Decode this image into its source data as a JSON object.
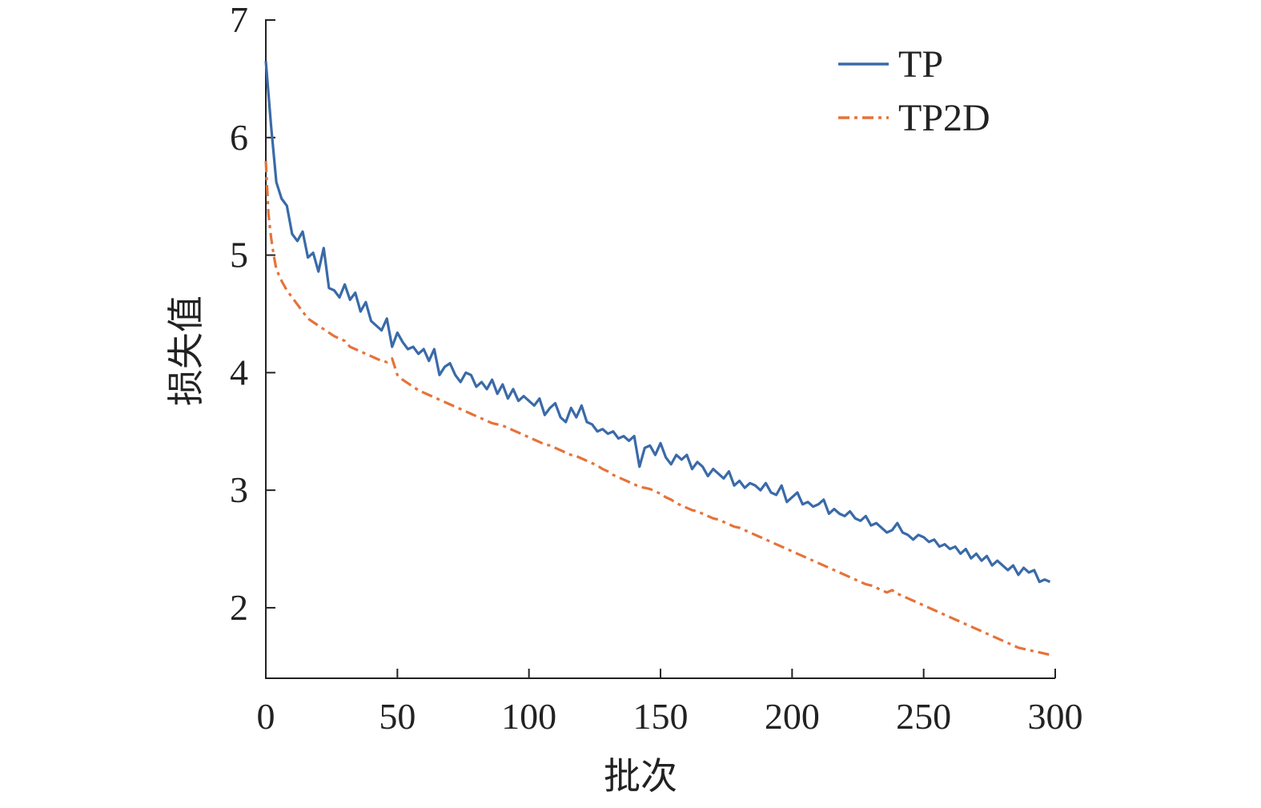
{
  "chart_data": {
    "type": "line",
    "title": "",
    "xlabel": "批次",
    "ylabel": "损失值",
    "xlim": [
      0,
      300
    ],
    "ylim": [
      1.4,
      7
    ],
    "xticks": [
      0,
      50,
      100,
      150,
      200,
      250,
      300
    ],
    "yticks": [
      2,
      3,
      4,
      5,
      6,
      7
    ],
    "xtick_labels": [
      "0",
      "50",
      "100",
      "150",
      "200",
      "250",
      "300"
    ],
    "ytick_labels": [
      "2",
      "3",
      "4",
      "5",
      "6",
      "7"
    ],
    "grid": false,
    "legend_position": "top-right",
    "series": [
      {
        "name": "TP",
        "color": "#3a6aa8",
        "style": "solid",
        "points": [
          [
            0,
            6.65
          ],
          [
            2,
            6.1
          ],
          [
            4,
            5.62
          ],
          [
            6,
            5.48
          ],
          [
            8,
            5.42
          ],
          [
            10,
            5.18
          ],
          [
            12,
            5.12
          ],
          [
            14,
            5.2
          ],
          [
            16,
            4.98
          ],
          [
            18,
            5.02
          ],
          [
            20,
            4.86
          ],
          [
            22,
            5.06
          ],
          [
            24,
            4.72
          ],
          [
            26,
            4.7
          ],
          [
            28,
            4.64
          ],
          [
            30,
            4.75
          ],
          [
            32,
            4.62
          ],
          [
            34,
            4.68
          ],
          [
            36,
            4.52
          ],
          [
            38,
            4.6
          ],
          [
            40,
            4.44
          ],
          [
            42,
            4.4
          ],
          [
            44,
            4.36
          ],
          [
            46,
            4.46
          ],
          [
            48,
            4.22
          ],
          [
            50,
            4.34
          ],
          [
            52,
            4.26
          ],
          [
            54,
            4.2
          ],
          [
            56,
            4.22
          ],
          [
            58,
            4.16
          ],
          [
            60,
            4.2
          ],
          [
            62,
            4.1
          ],
          [
            64,
            4.2
          ],
          [
            66,
            3.98
          ],
          [
            68,
            4.05
          ],
          [
            70,
            4.08
          ],
          [
            72,
            3.98
          ],
          [
            74,
            3.92
          ],
          [
            76,
            4.0
          ],
          [
            78,
            3.98
          ],
          [
            80,
            3.88
          ],
          [
            82,
            3.92
          ],
          [
            84,
            3.86
          ],
          [
            86,
            3.94
          ],
          [
            88,
            3.82
          ],
          [
            90,
            3.9
          ],
          [
            92,
            3.78
          ],
          [
            94,
            3.86
          ],
          [
            96,
            3.76
          ],
          [
            98,
            3.8
          ],
          [
            100,
            3.76
          ],
          [
            102,
            3.72
          ],
          [
            104,
            3.78
          ],
          [
            106,
            3.64
          ],
          [
            108,
            3.7
          ],
          [
            110,
            3.74
          ],
          [
            112,
            3.62
          ],
          [
            114,
            3.58
          ],
          [
            116,
            3.7
          ],
          [
            118,
            3.62
          ],
          [
            120,
            3.72
          ],
          [
            122,
            3.58
          ],
          [
            124,
            3.56
          ],
          [
            126,
            3.5
          ],
          [
            128,
            3.52
          ],
          [
            130,
            3.48
          ],
          [
            132,
            3.5
          ],
          [
            134,
            3.44
          ],
          [
            136,
            3.46
          ],
          [
            138,
            3.42
          ],
          [
            140,
            3.46
          ],
          [
            142,
            3.2
          ],
          [
            144,
            3.36
          ],
          [
            146,
            3.38
          ],
          [
            148,
            3.3
          ],
          [
            150,
            3.4
          ],
          [
            152,
            3.28
          ],
          [
            154,
            3.22
          ],
          [
            156,
            3.3
          ],
          [
            158,
            3.26
          ],
          [
            160,
            3.3
          ],
          [
            162,
            3.18
          ],
          [
            164,
            3.24
          ],
          [
            166,
            3.2
          ],
          [
            168,
            3.12
          ],
          [
            170,
            3.18
          ],
          [
            172,
            3.14
          ],
          [
            174,
            3.1
          ],
          [
            176,
            3.16
          ],
          [
            178,
            3.04
          ],
          [
            180,
            3.08
          ],
          [
            182,
            3.02
          ],
          [
            184,
            3.06
          ],
          [
            186,
            3.04
          ],
          [
            188,
            3.0
          ],
          [
            190,
            3.06
          ],
          [
            192,
            2.98
          ],
          [
            194,
            2.96
          ],
          [
            196,
            3.04
          ],
          [
            198,
            2.9
          ],
          [
            200,
            2.94
          ],
          [
            202,
            2.98
          ],
          [
            204,
            2.88
          ],
          [
            206,
            2.9
          ],
          [
            208,
            2.86
          ],
          [
            210,
            2.88
          ],
          [
            212,
            2.92
          ],
          [
            214,
            2.8
          ],
          [
            216,
            2.84
          ],
          [
            218,
            2.8
          ],
          [
            220,
            2.78
          ],
          [
            222,
            2.82
          ],
          [
            224,
            2.76
          ],
          [
            226,
            2.74
          ],
          [
            228,
            2.78
          ],
          [
            230,
            2.7
          ],
          [
            232,
            2.72
          ],
          [
            234,
            2.68
          ],
          [
            236,
            2.64
          ],
          [
            238,
            2.66
          ],
          [
            240,
            2.72
          ],
          [
            242,
            2.64
          ],
          [
            244,
            2.62
          ],
          [
            246,
            2.58
          ],
          [
            248,
            2.62
          ],
          [
            250,
            2.6
          ],
          [
            252,
            2.56
          ],
          [
            254,
            2.58
          ],
          [
            256,
            2.52
          ],
          [
            258,
            2.54
          ],
          [
            260,
            2.5
          ],
          [
            262,
            2.52
          ],
          [
            264,
            2.46
          ],
          [
            266,
            2.5
          ],
          [
            268,
            2.42
          ],
          [
            270,
            2.46
          ],
          [
            272,
            2.4
          ],
          [
            274,
            2.44
          ],
          [
            276,
            2.36
          ],
          [
            278,
            2.4
          ],
          [
            280,
            2.36
          ],
          [
            282,
            2.32
          ],
          [
            284,
            2.36
          ],
          [
            286,
            2.28
          ],
          [
            288,
            2.34
          ],
          [
            290,
            2.3
          ],
          [
            292,
            2.32
          ],
          [
            294,
            2.22
          ],
          [
            296,
            2.24
          ],
          [
            298,
            2.22
          ]
        ]
      },
      {
        "name": "TP2D",
        "color": "#e5733a",
        "style": "dash-dot",
        "points": [
          [
            0,
            5.8
          ],
          [
            1,
            5.35
          ],
          [
            2,
            5.15
          ],
          [
            3,
            5.0
          ],
          [
            4,
            4.88
          ],
          [
            6,
            4.78
          ],
          [
            8,
            4.7
          ],
          [
            10,
            4.64
          ],
          [
            12,
            4.58
          ],
          [
            14,
            4.52
          ],
          [
            16,
            4.46
          ],
          [
            18,
            4.43
          ],
          [
            20,
            4.4
          ],
          [
            22,
            4.37
          ],
          [
            24,
            4.34
          ],
          [
            26,
            4.31
          ],
          [
            28,
            4.29
          ],
          [
            30,
            4.27
          ],
          [
            32,
            4.22
          ],
          [
            34,
            4.2
          ],
          [
            36,
            4.18
          ],
          [
            38,
            4.16
          ],
          [
            40,
            4.14
          ],
          [
            42,
            4.12
          ],
          [
            44,
            4.1
          ],
          [
            46,
            4.09
          ],
          [
            48,
            4.12
          ],
          [
            50,
            3.98
          ],
          [
            52,
            3.94
          ],
          [
            54,
            3.91
          ],
          [
            56,
            3.88
          ],
          [
            58,
            3.85
          ],
          [
            60,
            3.83
          ],
          [
            62,
            3.81
          ],
          [
            64,
            3.79
          ],
          [
            66,
            3.77
          ],
          [
            68,
            3.75
          ],
          [
            70,
            3.73
          ],
          [
            72,
            3.71
          ],
          [
            74,
            3.69
          ],
          [
            76,
            3.67
          ],
          [
            78,
            3.65
          ],
          [
            80,
            3.63
          ],
          [
            82,
            3.61
          ],
          [
            84,
            3.59
          ],
          [
            86,
            3.57
          ],
          [
            88,
            3.56
          ],
          [
            90,
            3.55
          ],
          [
            92,
            3.53
          ],
          [
            94,
            3.51
          ],
          [
            96,
            3.49
          ],
          [
            98,
            3.47
          ],
          [
            100,
            3.45
          ],
          [
            102,
            3.43
          ],
          [
            104,
            3.41
          ],
          [
            106,
            3.39
          ],
          [
            108,
            3.38
          ],
          [
            110,
            3.36
          ],
          [
            112,
            3.34
          ],
          [
            114,
            3.32
          ],
          [
            116,
            3.3
          ],
          [
            118,
            3.29
          ],
          [
            120,
            3.27
          ],
          [
            122,
            3.25
          ],
          [
            124,
            3.23
          ],
          [
            126,
            3.21
          ],
          [
            128,
            3.18
          ],
          [
            130,
            3.16
          ],
          [
            132,
            3.13
          ],
          [
            134,
            3.11
          ],
          [
            136,
            3.09
          ],
          [
            138,
            3.07
          ],
          [
            140,
            3.05
          ],
          [
            142,
            3.03
          ],
          [
            144,
            3.02
          ],
          [
            146,
            3.01
          ],
          [
            148,
            2.99
          ],
          [
            150,
            2.97
          ],
          [
            152,
            2.94
          ],
          [
            154,
            2.92
          ],
          [
            156,
            2.89
          ],
          [
            158,
            2.87
          ],
          [
            160,
            2.85
          ],
          [
            162,
            2.83
          ],
          [
            164,
            2.82
          ],
          [
            166,
            2.8
          ],
          [
            168,
            2.78
          ],
          [
            170,
            2.76
          ],
          [
            172,
            2.75
          ],
          [
            174,
            2.73
          ],
          [
            176,
            2.71
          ],
          [
            178,
            2.69
          ],
          [
            180,
            2.68
          ],
          [
            182,
            2.66
          ],
          [
            184,
            2.64
          ],
          [
            186,
            2.62
          ],
          [
            188,
            2.6
          ],
          [
            190,
            2.58
          ],
          [
            192,
            2.56
          ],
          [
            194,
            2.54
          ],
          [
            196,
            2.52
          ],
          [
            198,
            2.5
          ],
          [
            200,
            2.48
          ],
          [
            202,
            2.46
          ],
          [
            204,
            2.44
          ],
          [
            206,
            2.42
          ],
          [
            208,
            2.4
          ],
          [
            210,
            2.38
          ],
          [
            212,
            2.36
          ],
          [
            214,
            2.34
          ],
          [
            216,
            2.32
          ],
          [
            218,
            2.3
          ],
          [
            220,
            2.28
          ],
          [
            222,
            2.26
          ],
          [
            224,
            2.24
          ],
          [
            226,
            2.22
          ],
          [
            228,
            2.2
          ],
          [
            230,
            2.19
          ],
          [
            232,
            2.17
          ],
          [
            234,
            2.15
          ],
          [
            236,
            2.13
          ],
          [
            238,
            2.15
          ],
          [
            240,
            2.12
          ],
          [
            242,
            2.1
          ],
          [
            244,
            2.08
          ],
          [
            246,
            2.06
          ],
          [
            248,
            2.04
          ],
          [
            250,
            2.02
          ],
          [
            252,
            2.0
          ],
          [
            254,
            1.98
          ],
          [
            256,
            1.96
          ],
          [
            258,
            1.94
          ],
          [
            260,
            1.92
          ],
          [
            262,
            1.9
          ],
          [
            264,
            1.88
          ],
          [
            266,
            1.86
          ],
          [
            268,
            1.84
          ],
          [
            270,
            1.82
          ],
          [
            272,
            1.8
          ],
          [
            274,
            1.78
          ],
          [
            276,
            1.76
          ],
          [
            278,
            1.74
          ],
          [
            280,
            1.72
          ],
          [
            282,
            1.7
          ],
          [
            284,
            1.68
          ],
          [
            286,
            1.66
          ],
          [
            288,
            1.65
          ],
          [
            290,
            1.64
          ],
          [
            292,
            1.63
          ],
          [
            294,
            1.62
          ],
          [
            296,
            1.61
          ],
          [
            298,
            1.6
          ]
        ]
      }
    ]
  }
}
